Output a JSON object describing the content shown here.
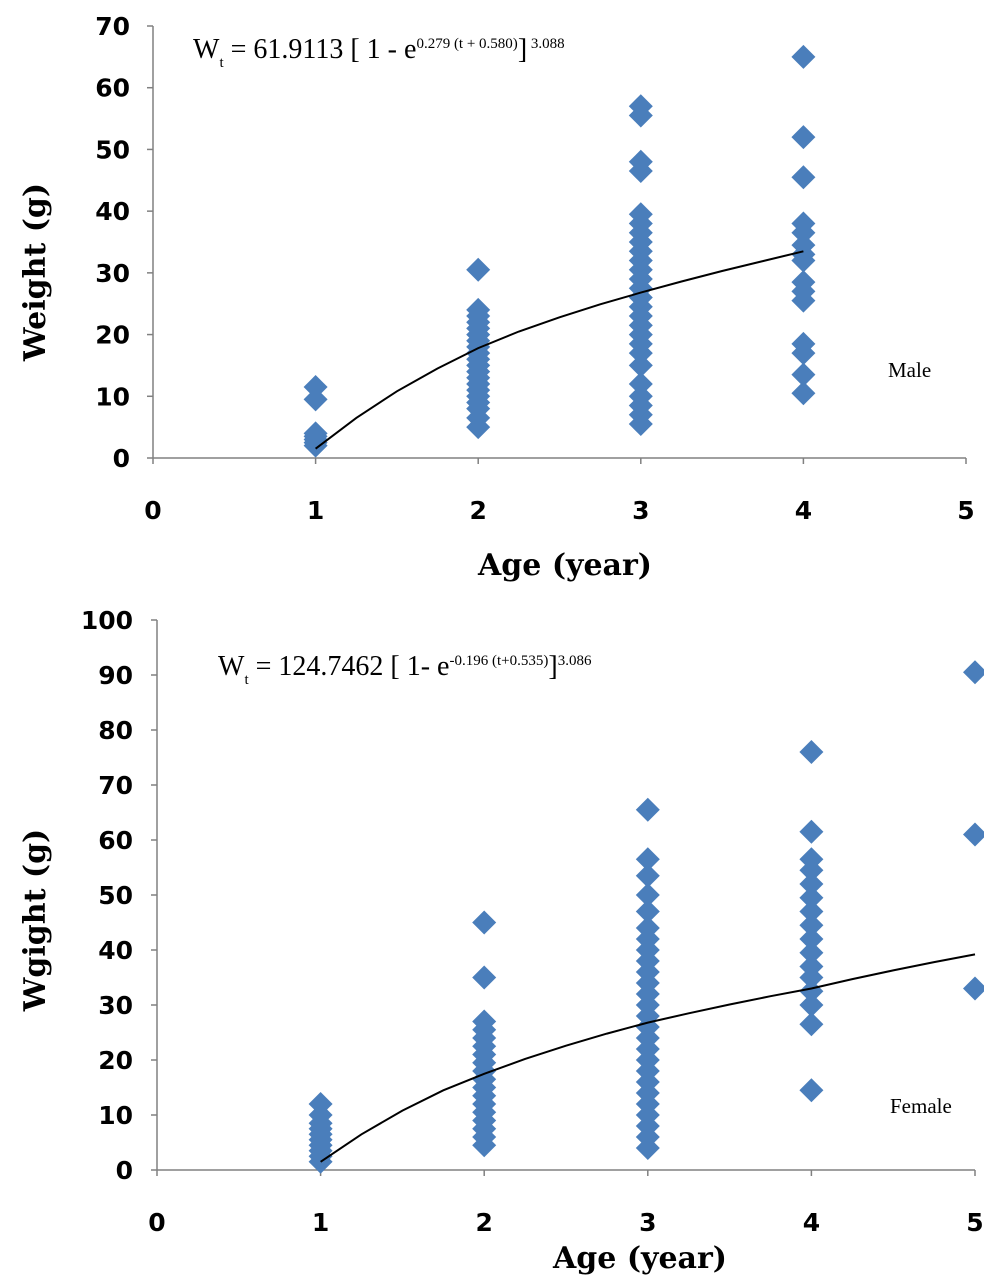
{
  "chart_data": [
    {
      "type": "scatter",
      "panel_label": "Male",
      "equation": {
        "lhs": "W",
        "lhs_sub": "t",
        "mid": " = 61.9113  [ 1 - e",
        "exponent": "0.279 (t + 0.580)",
        "close": "]",
        "power": " 3.088"
      },
      "xlabel": "Age (year)",
      "ylabel": "Weight (g)",
      "xlim": [
        0,
        5
      ],
      "ylim": [
        0,
        70
      ],
      "xticks": [
        "0",
        "1",
        "2",
        "3",
        "4",
        "5"
      ],
      "yticks": [
        "0",
        "10",
        "20",
        "30",
        "40",
        "50",
        "60",
        "70"
      ],
      "point_color": "#4a7ebb",
      "curve_color": "#000000",
      "points": [
        [
          1,
          2
        ],
        [
          1,
          2.5
        ],
        [
          1,
          3
        ],
        [
          1,
          3.5
        ],
        [
          1,
          4
        ],
        [
          1,
          9.5
        ],
        [
          1,
          11.5
        ],
        [
          2,
          5
        ],
        [
          2,
          6.5
        ],
        [
          2,
          8
        ],
        [
          2,
          9
        ],
        [
          2,
          10
        ],
        [
          2,
          11
        ],
        [
          2,
          12
        ],
        [
          2,
          13
        ],
        [
          2,
          14
        ],
        [
          2,
          15
        ],
        [
          2,
          16
        ],
        [
          2,
          17
        ],
        [
          2,
          18
        ],
        [
          2,
          19
        ],
        [
          2,
          20
        ],
        [
          2,
          21
        ],
        [
          2,
          22
        ],
        [
          2,
          23
        ],
        [
          2,
          24
        ],
        [
          2,
          30.5
        ],
        [
          3,
          5.5
        ],
        [
          3,
          7
        ],
        [
          3,
          8.5
        ],
        [
          3,
          10
        ],
        [
          3,
          12
        ],
        [
          3,
          15
        ],
        [
          3,
          17
        ],
        [
          3,
          18.5
        ],
        [
          3,
          20
        ],
        [
          3,
          21.5
        ],
        [
          3,
          23
        ],
        [
          3,
          24.5
        ],
        [
          3,
          26
        ],
        [
          3,
          27.5
        ],
        [
          3,
          29
        ],
        [
          3,
          30.5
        ],
        [
          3,
          32
        ],
        [
          3,
          33.5
        ],
        [
          3,
          35
        ],
        [
          3,
          36.5
        ],
        [
          3,
          38
        ],
        [
          3,
          39.5
        ],
        [
          3,
          46.5
        ],
        [
          3,
          48
        ],
        [
          3,
          55.5
        ],
        [
          3,
          57
        ],
        [
          4,
          10.5
        ],
        [
          4,
          13.5
        ],
        [
          4,
          17
        ],
        [
          4,
          18.5
        ],
        [
          4,
          25.5
        ],
        [
          4,
          27
        ],
        [
          4,
          28.5
        ],
        [
          4,
          32
        ],
        [
          4,
          33
        ],
        [
          4,
          34.5
        ],
        [
          4,
          36.5
        ],
        [
          4,
          38
        ],
        [
          4,
          45.5
        ],
        [
          4,
          52
        ],
        [
          4,
          65
        ]
      ],
      "curve": {
        "x": [
          1,
          1.25,
          1.5,
          1.75,
          2,
          2.25,
          2.5,
          2.75,
          3,
          3.25,
          3.5,
          3.75,
          4
        ],
        "y": [
          1.5,
          6.5,
          10.8,
          14.5,
          17.8,
          20.5,
          22.8,
          24.9,
          26.8,
          28.6,
          30.3,
          31.9,
          33.5
        ]
      }
    },
    {
      "type": "scatter",
      "panel_label": "Female",
      "equation": {
        "lhs": "W",
        "lhs_sub": "t",
        "mid": " = 124.7462  [ 1- e",
        "exponent": "-0.196 (t+0.535)",
        "close": "]",
        "power": "3.086"
      },
      "xlabel": "Age (year)",
      "ylabel": "Wgight (g)",
      "xlim": [
        0,
        5
      ],
      "ylim": [
        0,
        100
      ],
      "xticks": [
        "0",
        "1",
        "2",
        "3",
        "4",
        "5"
      ],
      "yticks": [
        "0",
        "10",
        "20",
        "30",
        "40",
        "50",
        "60",
        "70",
        "80",
        "90",
        "100"
      ],
      "point_color": "#4a7ebb",
      "curve_color": "#000000",
      "points": [
        [
          1,
          1.5
        ],
        [
          1,
          2.5
        ],
        [
          1,
          3.5
        ],
        [
          1,
          4.5
        ],
        [
          1,
          5.5
        ],
        [
          1,
          6.5
        ],
        [
          1,
          7.5
        ],
        [
          1,
          8.5
        ],
        [
          1,
          10
        ],
        [
          1,
          12
        ],
        [
          2,
          4.5
        ],
        [
          2,
          6
        ],
        [
          2,
          7.5
        ],
        [
          2,
          9
        ],
        [
          2,
          10.5
        ],
        [
          2,
          12
        ],
        [
          2,
          13.5
        ],
        [
          2,
          15
        ],
        [
          2,
          16.5
        ],
        [
          2,
          18
        ],
        [
          2,
          19.5
        ],
        [
          2,
          21
        ],
        [
          2,
          22.5
        ],
        [
          2,
          24
        ],
        [
          2,
          25.5
        ],
        [
          2,
          27
        ],
        [
          2,
          35
        ],
        [
          2,
          45
        ],
        [
          3,
          4
        ],
        [
          3,
          6
        ],
        [
          3,
          8
        ],
        [
          3,
          10
        ],
        [
          3,
          12
        ],
        [
          3,
          14
        ],
        [
          3,
          16
        ],
        [
          3,
          18
        ],
        [
          3,
          20
        ],
        [
          3,
          22
        ],
        [
          3,
          24
        ],
        [
          3,
          26
        ],
        [
          3,
          28
        ],
        [
          3,
          30
        ],
        [
          3,
          32
        ],
        [
          3,
          34
        ],
        [
          3,
          36
        ],
        [
          3,
          38
        ],
        [
          3,
          40
        ],
        [
          3,
          42
        ],
        [
          3,
          44
        ],
        [
          3,
          47
        ],
        [
          3,
          50
        ],
        [
          3,
          53.5
        ],
        [
          3,
          56.5
        ],
        [
          3,
          65.5
        ],
        [
          4,
          14.5
        ],
        [
          4,
          26.5
        ],
        [
          4,
          30
        ],
        [
          4,
          32.5
        ],
        [
          4,
          35
        ],
        [
          4,
          37
        ],
        [
          4,
          39.5
        ],
        [
          4,
          42
        ],
        [
          4,
          44.5
        ],
        [
          4,
          47
        ],
        [
          4,
          49.5
        ],
        [
          4,
          52
        ],
        [
          4,
          54.5
        ],
        [
          4,
          56.5
        ],
        [
          4,
          61.5
        ],
        [
          4,
          76
        ],
        [
          5,
          33
        ],
        [
          5,
          61
        ],
        [
          5,
          90.5
        ]
      ],
      "curve": {
        "x": [
          1,
          1.25,
          1.5,
          1.75,
          2,
          2.25,
          2.5,
          2.75,
          3,
          3.25,
          3.5,
          3.75,
          4,
          4.25,
          4.5,
          4.75,
          5
        ],
        "y": [
          1.5,
          6.5,
          10.8,
          14.5,
          17.5,
          20.2,
          22.6,
          24.8,
          26.8,
          28.5,
          30.1,
          31.6,
          33,
          34.7,
          36.3,
          37.8,
          39.2
        ]
      }
    }
  ]
}
